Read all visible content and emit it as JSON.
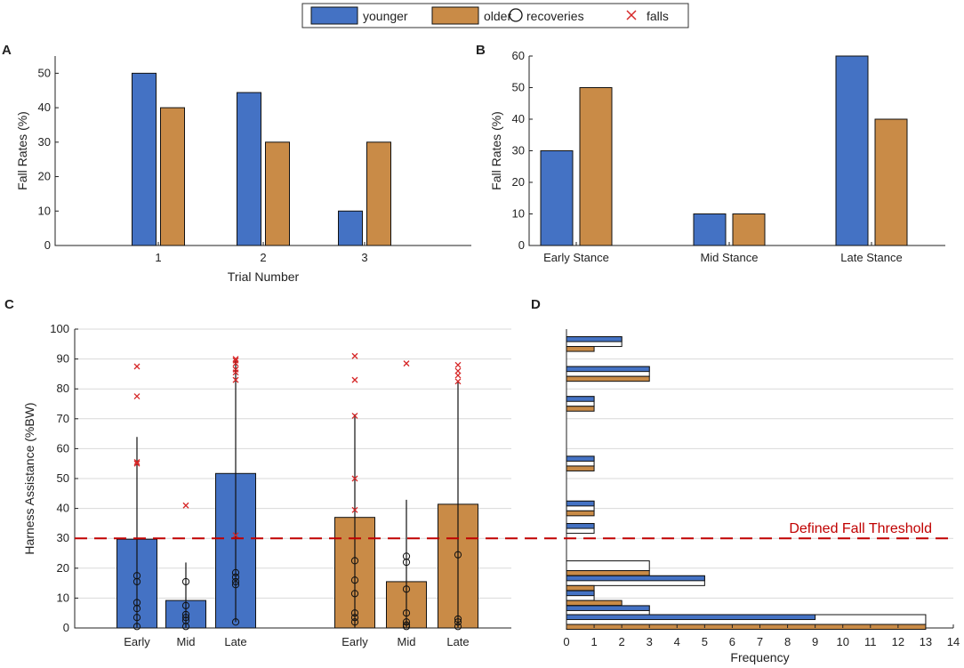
{
  "colors": {
    "younger": "#4472c4",
    "older": "#c98b47",
    "falls": "#d62728",
    "threshold": "#c00000"
  },
  "legend": {
    "younger": "younger",
    "older": "older",
    "recoveries": "recoveries",
    "falls": "falls"
  },
  "chart_data": [
    {
      "panel": "A",
      "type": "bar",
      "title": "",
      "xlabel": "Trial Number",
      "ylabel": "Fall Rates (%)",
      "categories": [
        "1",
        "2",
        "3"
      ],
      "ylim": [
        0,
        55
      ],
      "yticks": [
        0,
        10,
        20,
        30,
        40,
        50
      ],
      "series": [
        {
          "name": "younger",
          "values": [
            50,
            44.4,
            10
          ]
        },
        {
          "name": "older",
          "values": [
            40,
            30,
            30
          ]
        }
      ]
    },
    {
      "panel": "B",
      "type": "bar",
      "title": "",
      "xlabel": "",
      "ylabel": "Fall Rates (%)",
      "categories": [
        "Early Stance",
        "Mid Stance",
        "Late Stance"
      ],
      "ylim": [
        0,
        60
      ],
      "yticks": [
        0,
        10,
        20,
        30,
        40,
        50,
        60
      ],
      "series": [
        {
          "name": "younger",
          "values": [
            30,
            10,
            60
          ]
        },
        {
          "name": "older",
          "values": [
            50,
            10,
            40
          ]
        }
      ]
    },
    {
      "panel": "C",
      "type": "bar",
      "title": "",
      "xlabel": "",
      "ylabel": "Harness Assistance (%BW)",
      "ylim": [
        0,
        100
      ],
      "yticks": [
        0,
        10,
        20,
        30,
        40,
        50,
        60,
        70,
        80,
        90,
        100
      ],
      "grid": true,
      "threshold": 30,
      "groups": [
        {
          "name": "younger",
          "categories": [
            "Early",
            "Mid",
            "Late"
          ],
          "means": [
            29.7,
            9.2,
            51.7
          ],
          "err_low": [
            0.2,
            0.2,
            2
          ],
          "err_high": [
            63.9,
            21.9,
            89.5
          ],
          "recoveries": [
            [
              0.5,
              3.5,
              6.5,
              8.5,
              15.5,
              17.5
            ],
            [
              0.5,
              2.5,
              3.5,
              4.5,
              7.5,
              15.5
            ],
            [
              2,
              14.5,
              15.5,
              17,
              18.5
            ]
          ],
          "falls": [
            [
              55,
              55.5,
              77.5,
              87.5
            ],
            [
              41
            ],
            [
              31,
              83,
              85.5,
              86.5,
              88.5,
              89.5,
              90
            ]
          ]
        },
        {
          "name": "older",
          "categories": [
            "Early",
            "Mid",
            "Late"
          ],
          "means": [
            37,
            15.5,
            41.4
          ],
          "err_low": [
            0.2,
            0.2,
            0.2
          ],
          "err_high": [
            71.5,
            42.9,
            82.8
          ],
          "recoveries": [
            [
              2,
              3.5,
              5,
              11.5,
              16,
              22.5
            ],
            [
              0.5,
              1,
              2,
              5,
              13,
              22,
              24
            ],
            [
              0.5,
              2,
              3,
              24.5
            ]
          ],
          "falls": [
            [
              39.5,
              50,
              71,
              83,
              91
            ],
            [
              88.5
            ],
            [
              82.5,
              84.5,
              86,
              88
            ]
          ]
        }
      ]
    },
    {
      "panel": "D",
      "type": "bar",
      "orientation": "horizontal",
      "title": "",
      "xlabel": "Frequency",
      "ylabel": "",
      "xlim": [
        0,
        14
      ],
      "xticks": [
        0,
        1,
        2,
        3,
        4,
        5,
        6,
        7,
        8,
        9,
        10,
        11,
        12,
        13,
        14
      ],
      "threshold_label": "Defined Fall Threshold",
      "threshold": 30,
      "bins": [
        {
          "y": 95,
          "younger": 2,
          "total": 2,
          "older": 1
        },
        {
          "y": 85,
          "younger": 3,
          "total": 3,
          "older": 3
        },
        {
          "y": 75,
          "younger": 1,
          "total": 1,
          "older": 1
        },
        {
          "y": 55,
          "younger": 1,
          "total": 1,
          "older": 1
        },
        {
          "y": 40,
          "younger": 1,
          "total": 1,
          "older": 1
        },
        {
          "y": 32.5,
          "younger": 1,
          "total": 1,
          "older": 0
        },
        {
          "y": 20,
          "younger": 0,
          "total": 3,
          "older": 3
        },
        {
          "y": 15,
          "younger": 5,
          "total": 5,
          "older": 1
        },
        {
          "y": 10,
          "younger": 1,
          "total": 1,
          "older": 2
        },
        {
          "y": 5,
          "younger": 3,
          "total": 3,
          "older": 0
        },
        {
          "y": 2,
          "younger": 9,
          "total": 13,
          "older": 13
        }
      ]
    }
  ]
}
